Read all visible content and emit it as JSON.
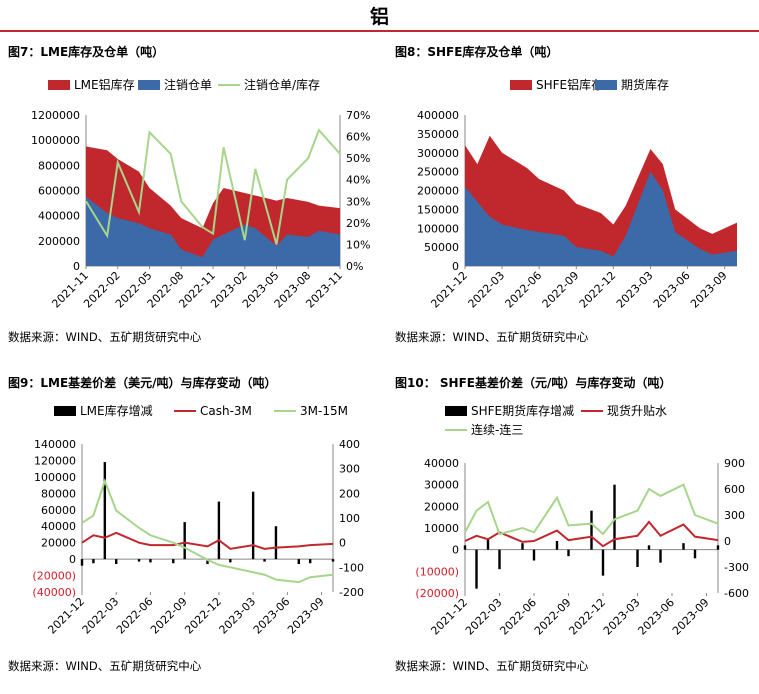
{
  "page": {
    "title": "铝"
  },
  "figures": [
    {
      "title": "图7：LME库存及仓单（吨）",
      "source": "数据来源：WIND、五矿期货研究中心"
    },
    {
      "title": "图8：SHFE库存及仓单（吨）",
      "source": "数据来源：WIND、五矿期货研究中心"
    },
    {
      "title": "图9：LME基差价差（美元/吨）与库存变动（吨）",
      "source": "数据来源：WIND、五矿期货研究中心"
    },
    {
      "title": "图10： SHFE基差价差（元/吨）与库存变动（吨）",
      "source": "数据来源：WIND、五矿期货研究中心"
    }
  ],
  "chart_data": [
    {
      "type": "area",
      "x_ticks": [
        "2021-11",
        "2022-02",
        "2022-05",
        "2022-08",
        "2022-11",
        "2023-02",
        "2023-05",
        "2023-08",
        "2023-11"
      ],
      "x": [
        "2021-11",
        "2022-01",
        "2022-02",
        "2022-04",
        "2022-05",
        "2022-07",
        "2022-08",
        "2022-10",
        "2022-11",
        "2022-12",
        "2023-02",
        "2023-03",
        "2023-05",
        "2023-06",
        "2023-08",
        "2023-09",
        "2023-11"
      ],
      "ylim": [
        0,
        1200000
      ],
      "y_ticks": [
        "0",
        "200000",
        "400000",
        "600000",
        "800000",
        "1000000",
        "1200000"
      ],
      "y2lim": [
        0,
        70
      ],
      "y2_ticks": [
        "0%",
        "10%",
        "20%",
        "30%",
        "40%",
        "50%",
        "60%",
        "70%"
      ],
      "series": [
        {
          "name": "LME铝库存",
          "axis": "left",
          "color": "#c0282e",
          "values": [
            950000,
            920000,
            850000,
            750000,
            620000,
            480000,
            380000,
            300000,
            500000,
            620000,
            580000,
            560000,
            520000,
            540000,
            510000,
            480000,
            460000
          ]
        },
        {
          "name": "注销仓单",
          "axis": "left",
          "color": "#3c6aa8",
          "values": [
            550000,
            420000,
            380000,
            340000,
            300000,
            250000,
            130000,
            70000,
            210000,
            250000,
            330000,
            300000,
            160000,
            250000,
            230000,
            280000,
            250000
          ]
        },
        {
          "name": "注销仓单/库存",
          "axis": "right",
          "color": "#a6d58b",
          "values": [
            30,
            14,
            48,
            25,
            62,
            52,
            30,
            18,
            15,
            55,
            12,
            45,
            10,
            40,
            50,
            63,
            52
          ]
        }
      ]
    },
    {
      "type": "area",
      "x_ticks": [
        "2021-12",
        "2022-03",
        "2022-06",
        "2022-09",
        "2022-12",
        "2023-03",
        "2023-06",
        "2023-09"
      ],
      "x": [
        "2021-12",
        "2022-01",
        "2022-02",
        "2022-03",
        "2022-05",
        "2022-06",
        "2022-08",
        "2022-09",
        "2022-11",
        "2022-12",
        "2023-01",
        "2023-03",
        "2023-04",
        "2023-05",
        "2023-07",
        "2023-08",
        "2023-10"
      ],
      "ylim": [
        0,
        400000
      ],
      "y_ticks": [
        "0",
        "50000",
        "100000",
        "150000",
        "200000",
        "250000",
        "300000",
        "350000",
        "400000"
      ],
      "series": [
        {
          "name": "SHFE铝库存",
          "color": "#c0282e",
          "values": [
            320000,
            270000,
            345000,
            300000,
            260000,
            230000,
            200000,
            165000,
            140000,
            110000,
            160000,
            310000,
            270000,
            150000,
            100000,
            85000,
            115000
          ]
        },
        {
          "name": "期货库存",
          "color": "#3c6aa8",
          "values": [
            210000,
            170000,
            130000,
            110000,
            95000,
            90000,
            80000,
            50000,
            40000,
            25000,
            80000,
            250000,
            200000,
            90000,
            45000,
            30000,
            40000
          ]
        }
      ]
    },
    {
      "type": "line",
      "x_ticks": [
        "2021-12",
        "2022-03",
        "2022-06",
        "2022-09",
        "2022-12",
        "2023-03",
        "2023-06",
        "2023-09"
      ],
      "x": [
        "2021-12",
        "2022-01",
        "2022-02",
        "2022-03",
        "2022-05",
        "2022-06",
        "2022-08",
        "2022-09",
        "2022-11",
        "2022-12",
        "2023-01",
        "2023-03",
        "2023-04",
        "2023-05",
        "2023-07",
        "2023-08",
        "2023-10"
      ],
      "ylim": [
        -40000,
        140000
      ],
      "y_ticks": [
        "(40000)",
        "(20000)",
        "0",
        "20000",
        "40000",
        "60000",
        "80000",
        "100000",
        "120000",
        "140000"
      ],
      "y2lim": [
        -200,
        400
      ],
      "y2_ticks": [
        "-200",
        "-100",
        "0",
        "100",
        "200",
        "300",
        "400"
      ],
      "series": [
        {
          "name": "LME库存增减",
          "type": "bar",
          "axis": "left",
          "color": "#000000",
          "values": [
            -8000,
            -5000,
            118000,
            -6000,
            -3000,
            -4000,
            -5000,
            45000,
            -6000,
            70000,
            -4000,
            82000,
            -3000,
            40000,
            -6000,
            -5000,
            -3000
          ]
        },
        {
          "name": "Cash-3M",
          "axis": "right",
          "color": "#c0282e",
          "values": [
            0,
            30,
            20,
            40,
            0,
            -10,
            -10,
            0,
            -15,
            10,
            -25,
            -10,
            -25,
            -20,
            -15,
            -10,
            -5
          ]
        },
        {
          "name": "3M-15M",
          "axis": "right",
          "color": "#a6d58b",
          "values": [
            80,
            110,
            250,
            130,
            60,
            30,
            0,
            -20,
            -70,
            -90,
            -100,
            -120,
            -130,
            -150,
            -160,
            -140,
            -130
          ]
        }
      ]
    },
    {
      "type": "line",
      "x_ticks": [
        "2021-12",
        "2022-03",
        "2022-06",
        "2022-09",
        "2022-12",
        "2023-03",
        "2023-06",
        "2023-09"
      ],
      "x": [
        "2021-12",
        "2022-01",
        "2022-02",
        "2022-03",
        "2022-05",
        "2022-06",
        "2022-08",
        "2022-09",
        "2022-11",
        "2022-12",
        "2023-01",
        "2023-03",
        "2023-04",
        "2023-05",
        "2023-07",
        "2023-08",
        "2023-10"
      ],
      "ylim": [
        -20000,
        40000
      ],
      "y_ticks": [
        "(20000)",
        "(10000)",
        "0",
        "10000",
        "20000",
        "30000",
        "40000"
      ],
      "y2lim": [
        -600,
        900
      ],
      "y2_ticks": [
        "-600",
        "-300",
        "0",
        "300",
        "600",
        "900"
      ],
      "series": [
        {
          "name": "SHFE期货库存增减",
          "type": "bar",
          "axis": "left",
          "color": "#000000",
          "values": [
            2000,
            -18000,
            5000,
            -9000,
            3000,
            -5000,
            4000,
            -3000,
            18000,
            -12000,
            30000,
            -8000,
            2000,
            -6000,
            3000,
            -4000,
            2000
          ]
        },
        {
          "name": "现货升贴水",
          "axis": "right",
          "color": "#c0282e",
          "values": [
            0,
            60,
            20,
            100,
            -10,
            0,
            120,
            10,
            50,
            -60,
            20,
            60,
            220,
            60,
            190,
            50,
            10
          ]
        },
        {
          "name": "连续-连三",
          "axis": "right",
          "color": "#a6d58b",
          "values": [
            100,
            350,
            450,
            80,
            150,
            100,
            500,
            180,
            200,
            80,
            250,
            350,
            600,
            520,
            650,
            300,
            200
          ]
        }
      ]
    }
  ]
}
